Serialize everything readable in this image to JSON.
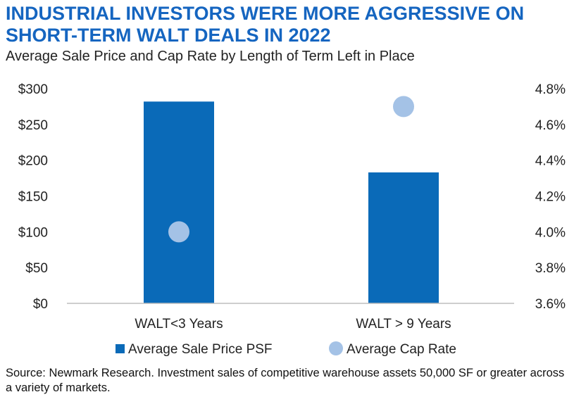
{
  "title": "INDUSTRIAL INVESTORS WERE MORE AGGRESSIVE ON SHORT-TERM WALT DEALS IN 2022",
  "subtitle": "Average Sale Price and Cap Rate by Length of Term Left in Place",
  "source": "Source: Newmark Research. Investment sales of competitive warehouse assets 50,000 SF or greater across a variety of markets.",
  "chart_data": {
    "type": "bar",
    "categories": [
      "WALT<3 Years",
      "WALT > 9 Years"
    ],
    "series": [
      {
        "name": "Average Sale Price PSF",
        "type": "bar",
        "axis": "left",
        "values": [
          282,
          183
        ],
        "color": "#0a6ab8"
      },
      {
        "name": "Average Cap Rate",
        "type": "scatter",
        "axis": "right",
        "values": [
          4.0,
          4.7
        ],
        "color": "#a4c2e6"
      }
    ],
    "left_axis": {
      "ylim": [
        0,
        300
      ],
      "ticks": [
        "$0",
        "$50",
        "$100",
        "$150",
        "$200",
        "$250",
        "$300"
      ],
      "tick_values": [
        0,
        50,
        100,
        150,
        200,
        250,
        300
      ]
    },
    "right_axis": {
      "ylim": [
        3.6,
        4.8
      ],
      "ticks": [
        "3.6%",
        "3.8%",
        "4.0%",
        "4.2%",
        "4.4%",
        "4.6%",
        "4.8%"
      ],
      "tick_values": [
        3.6,
        3.8,
        4.0,
        4.2,
        4.4,
        4.6,
        4.8
      ]
    },
    "legend_position": "bottom",
    "grid": false
  }
}
